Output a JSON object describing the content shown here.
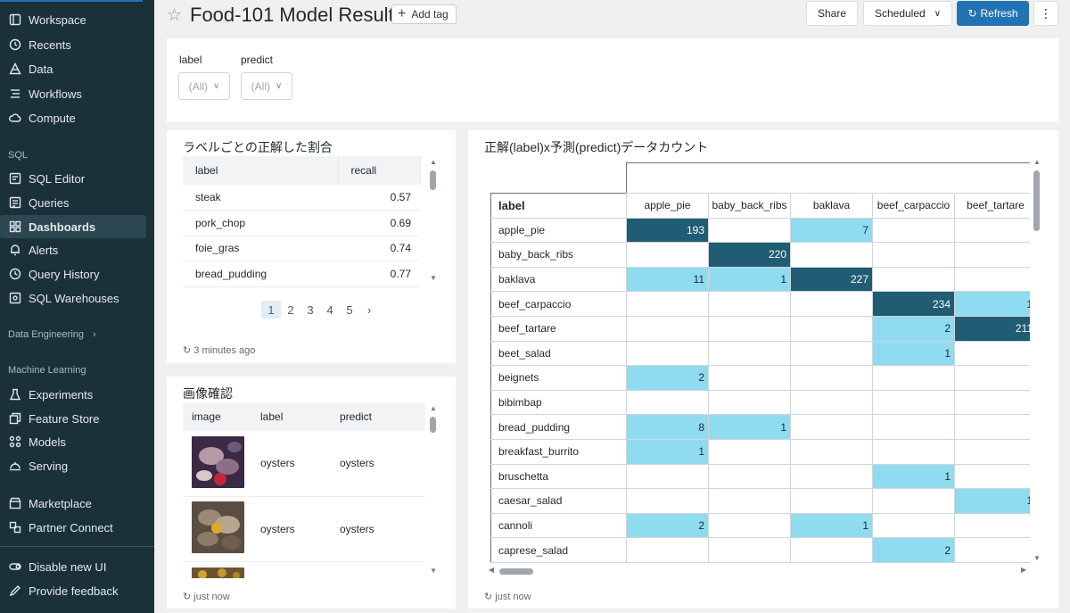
{
  "sidebar": {
    "items": [
      {
        "label": "Workspace",
        "icon": "workspace-icon"
      },
      {
        "label": "Recents",
        "icon": "clock-icon"
      },
      {
        "label": "Data",
        "icon": "data-icon"
      },
      {
        "label": "Workflows",
        "icon": "workflows-icon"
      },
      {
        "label": "Compute",
        "icon": "cloud-icon"
      }
    ],
    "sql_section": "SQL",
    "sql_items": [
      {
        "label": "SQL Editor",
        "icon": "editor-icon"
      },
      {
        "label": "Queries",
        "icon": "queries-icon"
      },
      {
        "label": "Dashboards",
        "icon": "dashboard-icon"
      },
      {
        "label": "Alerts",
        "icon": "bell-icon"
      },
      {
        "label": "Query History",
        "icon": "history-icon"
      },
      {
        "label": "SQL Warehouses",
        "icon": "warehouse-icon"
      }
    ],
    "de_section": "Data Engineering",
    "ml_section": "Machine Learning",
    "ml_items": [
      {
        "label": "Experiments",
        "icon": "flask-icon"
      },
      {
        "label": "Feature Store",
        "icon": "feature-store-icon"
      },
      {
        "label": "Models",
        "icon": "models-icon"
      },
      {
        "label": "Serving",
        "icon": "serving-icon"
      }
    ],
    "bottom_items": [
      {
        "label": "Marketplace",
        "icon": "marketplace-icon"
      },
      {
        "label": "Partner Connect",
        "icon": "partner-icon"
      }
    ],
    "footer_items": [
      {
        "label": "Disable new UI",
        "icon": "toggle-icon"
      },
      {
        "label": "Provide feedback",
        "icon": "pencil-icon"
      }
    ]
  },
  "header": {
    "title": "Food-101 Model Result",
    "add_tag": "Add tag",
    "share": "Share",
    "scheduled": "Scheduled",
    "refresh": "Refresh",
    "more": "⋮"
  },
  "filters": [
    {
      "label": "label",
      "value": "(All)"
    },
    {
      "label": "predict",
      "value": "(All)"
    }
  ],
  "recall_panel": {
    "title": "ラベルごとの正解した割合",
    "columns": [
      "label",
      "recall"
    ],
    "rows": [
      [
        "steak",
        "0.57"
      ],
      [
        "pork_chop",
        "0.69"
      ],
      [
        "foie_gras",
        "0.74"
      ],
      [
        "bread_pudding",
        "0.77"
      ]
    ],
    "pages": [
      "1",
      "2",
      "3",
      "4",
      "5"
    ],
    "next": "›",
    "updated": "3 minutes ago"
  },
  "image_panel": {
    "title": "画像確認",
    "columns": [
      "image",
      "label",
      "predict"
    ],
    "rows": [
      [
        "oysters",
        "oysters"
      ],
      [
        "oysters",
        "oysters"
      ]
    ],
    "updated": "just now"
  },
  "matrix_panel": {
    "title": "正解(label)x予測(predict)データカウント",
    "row_header": "label",
    "columns": [
      "apple_pie",
      "baby_back_ribs",
      "baklava",
      "beef_carpaccio",
      "beef_tartare"
    ],
    "rows": [
      {
        "label": "apple_pie",
        "cells": [
          "193",
          "",
          "7",
          "",
          ""
        ]
      },
      {
        "label": "baby_back_ribs",
        "cells": [
          "",
          "220",
          "",
          "",
          ""
        ]
      },
      {
        "label": "baklava",
        "cells": [
          "11",
          "1",
          "227",
          "",
          ""
        ]
      },
      {
        "label": "beef_carpaccio",
        "cells": [
          "",
          "",
          "",
          "234",
          "1"
        ]
      },
      {
        "label": "beef_tartare",
        "cells": [
          "",
          "",
          "",
          "2",
          "211"
        ]
      },
      {
        "label": "beet_salad",
        "cells": [
          "",
          "",
          "",
          "1",
          ""
        ]
      },
      {
        "label": "beignets",
        "cells": [
          "2",
          "",
          "",
          "",
          ""
        ]
      },
      {
        "label": "bibimbap",
        "cells": [
          "",
          "",
          "",
          "",
          ""
        ]
      },
      {
        "label": "bread_pudding",
        "cells": [
          "8",
          "1",
          "",
          "",
          ""
        ]
      },
      {
        "label": "breakfast_burrito",
        "cells": [
          "1",
          "",
          "",
          "",
          ""
        ]
      },
      {
        "label": "bruschetta",
        "cells": [
          "",
          "",
          "",
          "1",
          ""
        ]
      },
      {
        "label": "caesar_salad",
        "cells": [
          "",
          "",
          "",
          "",
          "1"
        ]
      },
      {
        "label": "cannoli",
        "cells": [
          "2",
          "",
          "1",
          "",
          ""
        ]
      },
      {
        "label": "caprese_salad",
        "cells": [
          "",
          "",
          "",
          "2",
          ""
        ]
      }
    ],
    "high_threshold": 100,
    "colors": {
      "low": "#8fdcf1",
      "high": "#205c73"
    },
    "updated": "just now"
  },
  "colors": {
    "sidebar": "#1b3139",
    "accent": "#2272b4"
  }
}
